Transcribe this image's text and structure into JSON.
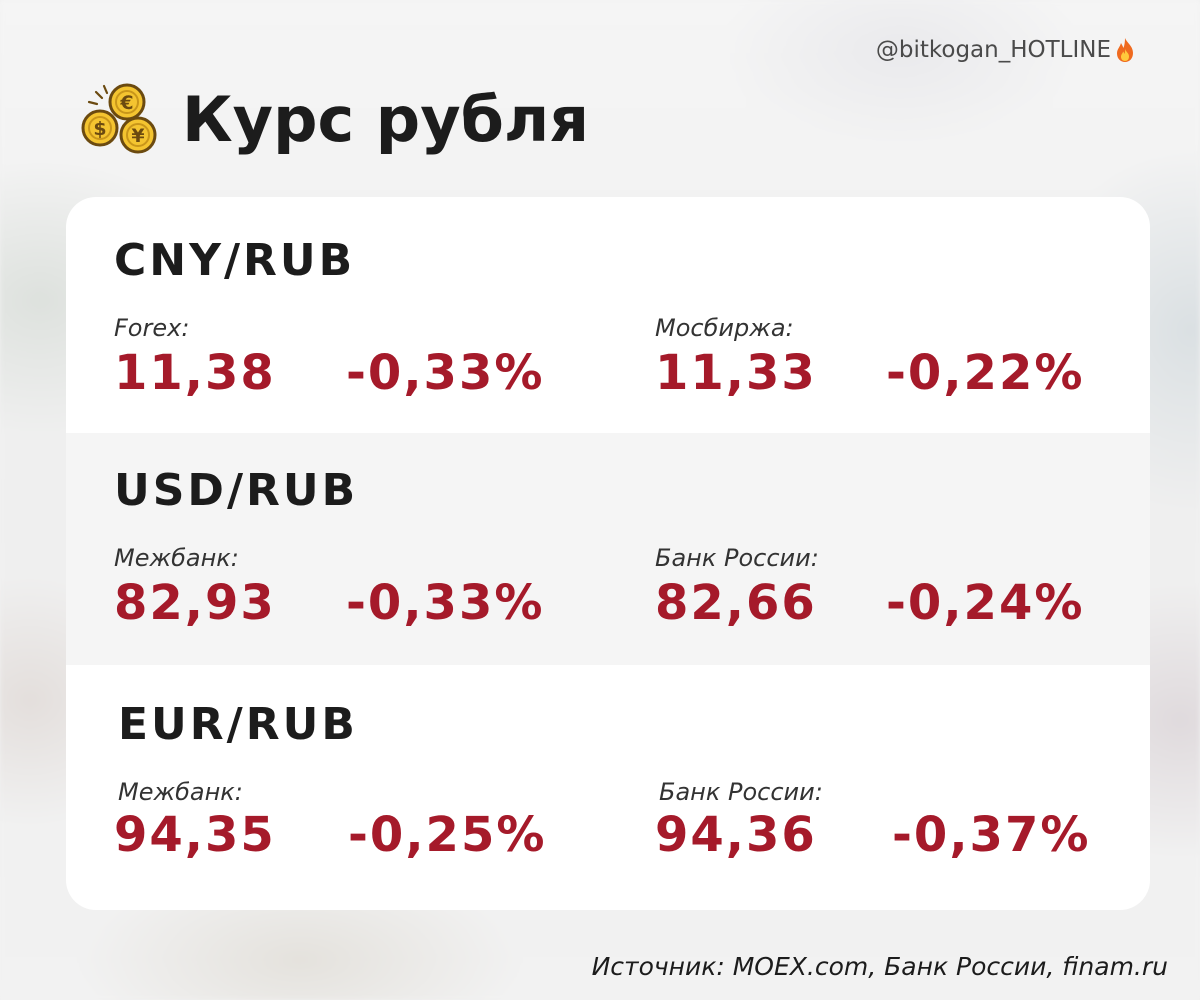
{
  "header": {
    "handle": "@bitkogan_HOTLINE",
    "title": "Курс рубля",
    "icons": [
      "coins-icon",
      "flame-icon"
    ]
  },
  "rates": [
    {
      "pair": "CNY/RUB",
      "left": {
        "label": "Forex:",
        "value": "11,38",
        "change": "-0,33%"
      },
      "right": {
        "label": "Мосбиржа:",
        "value": "11,33",
        "change": "-0,22%"
      }
    },
    {
      "pair": "USD/RUB",
      "left": {
        "label": "Межбанк:",
        "value": "82,93",
        "change": "-0,33%"
      },
      "right": {
        "label": "Банк России:",
        "value": "82,66",
        "change": "-0,24%"
      }
    },
    {
      "pair": "EUR/RUB",
      "left": {
        "label": "Межбанк:",
        "value": "94,35",
        "change": "-0,25%"
      },
      "right": {
        "label": "Банк России:",
        "value": "94,36",
        "change": "-0,37%"
      }
    }
  ],
  "footer": {
    "source": "Источник: MOEX.com, Банк России, finam.ru"
  },
  "colors": {
    "value": "#a51a2a",
    "text": "#1c1c1c",
    "card": "#ffffff",
    "alt_row": "#f5f5f5"
  }
}
